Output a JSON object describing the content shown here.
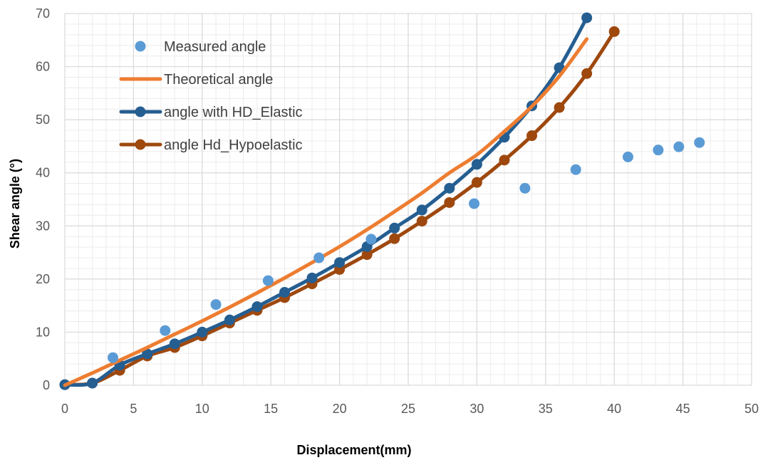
{
  "chart_data": {
    "type": "scatter",
    "title": "",
    "xlabel": "Displacement(mm)",
    "ylabel": "Shear angle  (°)",
    "xlim": [
      0,
      50
    ],
    "ylim": [
      0,
      70
    ],
    "x_ticks": [
      0,
      5,
      10,
      15,
      20,
      25,
      30,
      35,
      40,
      45,
      50
    ],
    "y_ticks": [
      0,
      10,
      20,
      30,
      40,
      50,
      60,
      70
    ],
    "x_tick_labels": [
      "0",
      "5",
      "10",
      "15",
      "20",
      "25",
      "30",
      "35",
      "40",
      "45",
      "50"
    ],
    "y_tick_labels": [
      "0",
      "10",
      "20",
      "30",
      "40",
      "50",
      "60",
      "70"
    ],
    "grid": {
      "major": true,
      "minor": true
    },
    "legend": "top-left",
    "series": [
      {
        "name": "Measured angle",
        "style": "markers",
        "color": "#5B9BD5",
        "points": [
          [
            3.5,
            5.2
          ],
          [
            7.3,
            10.3
          ],
          [
            11.0,
            15.2
          ],
          [
            14.8,
            19.7
          ],
          [
            18.5,
            24.0
          ],
          [
            22.3,
            27.5
          ],
          [
            29.8,
            34.2
          ],
          [
            33.5,
            37.1
          ],
          [
            37.2,
            40.6
          ],
          [
            41.0,
            43.0
          ],
          [
            43.2,
            44.3
          ],
          [
            44.7,
            44.9
          ],
          [
            46.2,
            45.7
          ]
        ]
      },
      {
        "name": "Theoretical angle",
        "style": "line",
        "color": "#ED7D31",
        "points": [
          [
            0,
            0
          ],
          [
            2,
            2.3
          ],
          [
            4,
            4.7
          ],
          [
            6,
            7.1
          ],
          [
            8,
            9.6
          ],
          [
            10,
            12.1
          ],
          [
            12,
            14.7
          ],
          [
            14,
            17.4
          ],
          [
            16,
            20.2
          ],
          [
            18,
            23.1
          ],
          [
            20,
            26.1
          ],
          [
            22,
            29.3
          ],
          [
            24,
            32.7
          ],
          [
            26,
            36.2
          ],
          [
            28,
            40.0
          ],
          [
            30,
            43.4
          ],
          [
            32,
            47.8
          ],
          [
            34,
            52.5
          ],
          [
            36,
            58.2
          ],
          [
            38,
            65.2
          ]
        ]
      },
      {
        "name": "angle with HD_Elastic",
        "style": "line-markers",
        "color": "#255E91",
        "points": [
          [
            0,
            0.1
          ],
          [
            2,
            0.4
          ],
          [
            4,
            3.8
          ],
          [
            6,
            5.9
          ],
          [
            8,
            7.8
          ],
          [
            10,
            10.0
          ],
          [
            12,
            12.3
          ],
          [
            14,
            14.8
          ],
          [
            16,
            17.5
          ],
          [
            18,
            20.2
          ],
          [
            20,
            23.1
          ],
          [
            22,
            26.1
          ],
          [
            24,
            29.6
          ],
          [
            26,
            33.0
          ],
          [
            28,
            37.1
          ],
          [
            30,
            41.6
          ],
          [
            32,
            46.7
          ],
          [
            34,
            52.6
          ],
          [
            36,
            59.8
          ],
          [
            38,
            69.2
          ]
        ]
      },
      {
        "name": "angle Hd_Hypoelastic",
        "style": "line-markers",
        "color": "#9E480E",
        "points": [
          [
            0,
            0.1
          ],
          [
            2,
            0.4
          ],
          [
            4,
            2.8
          ],
          [
            6,
            5.5
          ],
          [
            8,
            7.1
          ],
          [
            10,
            9.3
          ],
          [
            12,
            11.7
          ],
          [
            14,
            14.1
          ],
          [
            16,
            16.5
          ],
          [
            18,
            19.1
          ],
          [
            20,
            21.8
          ],
          [
            22,
            24.6
          ],
          [
            24,
            27.6
          ],
          [
            26,
            30.9
          ],
          [
            28,
            34.4
          ],
          [
            30,
            38.2
          ],
          [
            32,
            42.4
          ],
          [
            34,
            47.0
          ],
          [
            36,
            52.3
          ],
          [
            38,
            58.7
          ],
          [
            40,
            66.6
          ]
        ]
      }
    ]
  }
}
